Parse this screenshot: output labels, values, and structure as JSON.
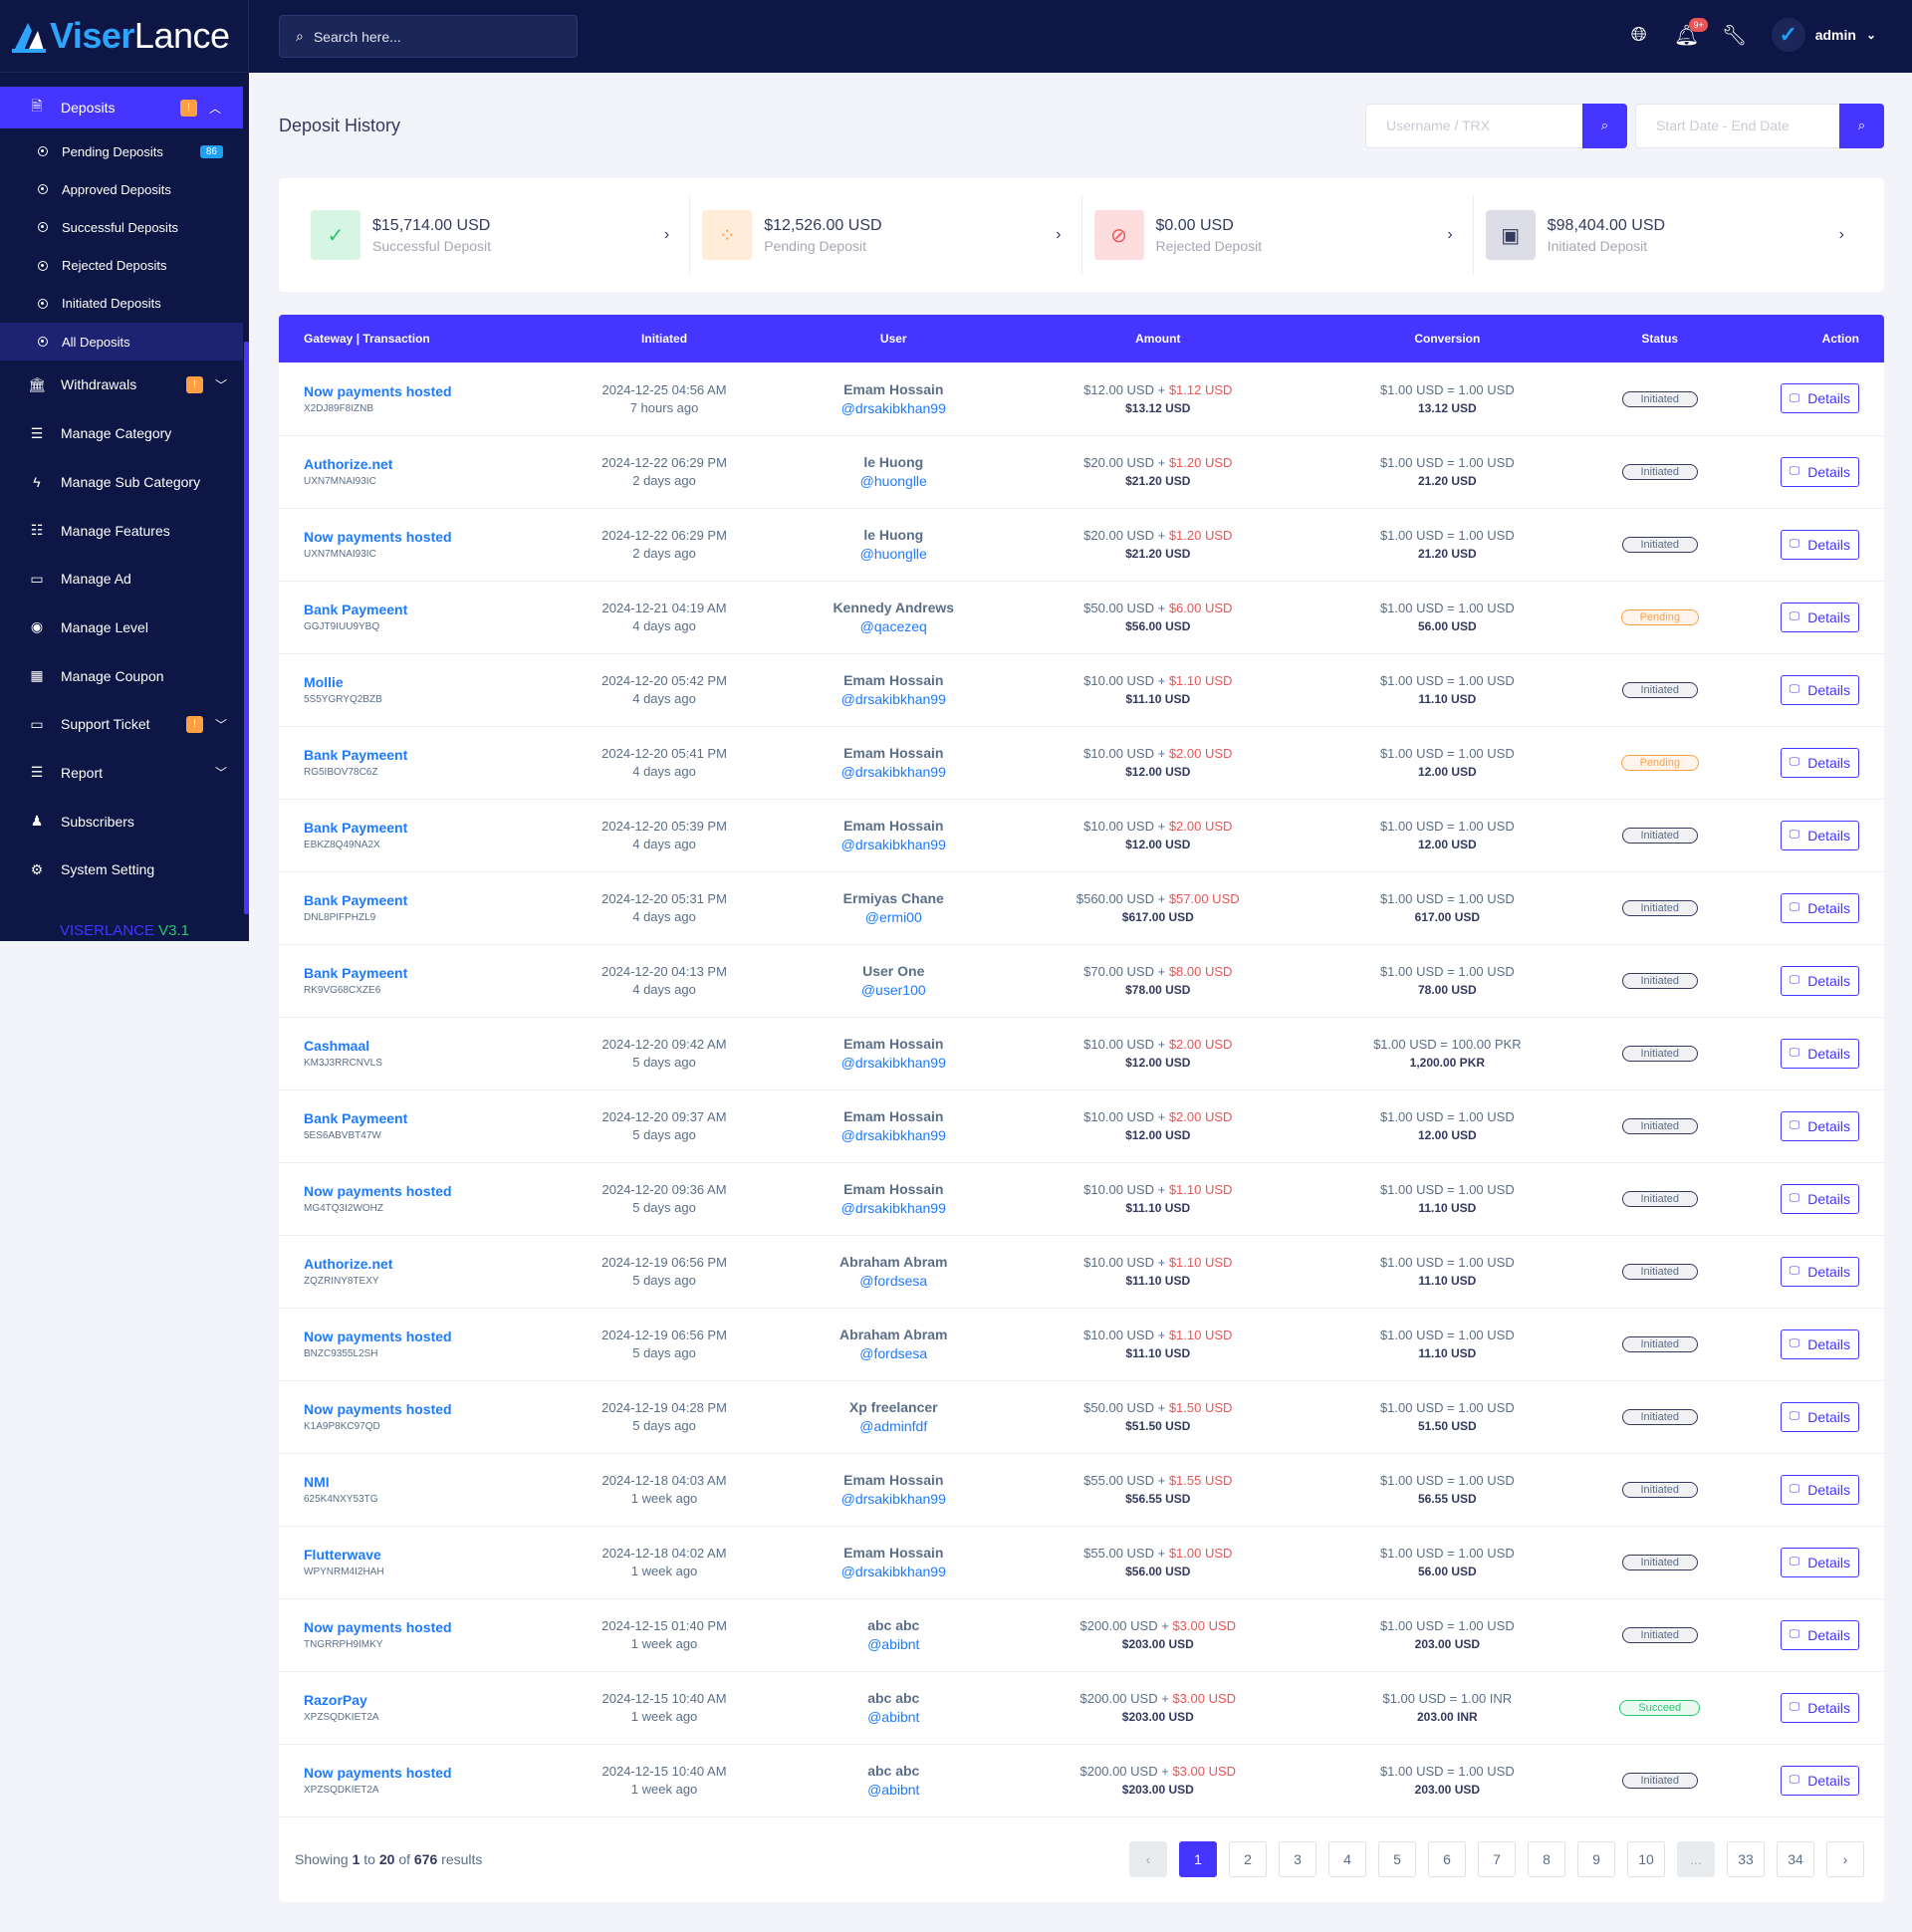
{
  "brand": {
    "name_a": "Viser",
    "name_b": "Lance"
  },
  "search": {
    "placeholder": "Search here..."
  },
  "topbar": {
    "admin_label": "admin",
    "notif_badge": "9+"
  },
  "sidebar": {
    "deposits": {
      "label": "Deposits",
      "warn": "!"
    },
    "sub_items": [
      {
        "label": "Pending Deposits",
        "count": "86"
      },
      {
        "label": "Approved Deposits"
      },
      {
        "label": "Successful Deposits"
      },
      {
        "label": "Rejected Deposits"
      },
      {
        "label": "Initiated Deposits"
      },
      {
        "label": "All Deposits"
      }
    ],
    "items": [
      {
        "label": "Withdrawals",
        "warn": "!"
      },
      {
        "label": "Manage Category"
      },
      {
        "label": "Manage Sub Category"
      },
      {
        "label": "Manage Features"
      },
      {
        "label": "Manage Ad"
      },
      {
        "label": "Manage Level"
      },
      {
        "label": "Manage Coupon"
      },
      {
        "label": "Support Ticket",
        "warn": "!"
      },
      {
        "label": "Report"
      },
      {
        "label": "Subscribers"
      },
      {
        "label": "System Setting"
      }
    ],
    "version_a": "VISERLANCE",
    "version_b": "V3.1"
  },
  "page": {
    "title": "Deposit History",
    "filter_user_placeholder": "Username / TRX",
    "filter_date_placeholder": "Start Date - End Date"
  },
  "stats": [
    {
      "value": "$15,714.00 USD",
      "label": "Successful Deposit"
    },
    {
      "value": "$12,526.00 USD",
      "label": "Pending Deposit"
    },
    {
      "value": "$0.00 USD",
      "label": "Rejected Deposit"
    },
    {
      "value": "$98,404.00 USD",
      "label": "Initiated Deposit"
    }
  ],
  "table": {
    "headers": [
      "Gateway | Transaction",
      "Initiated",
      "User",
      "Amount",
      "Conversion",
      "Status",
      "Action"
    ],
    "details_label": "Details",
    "rows": [
      {
        "gw": "Now payments hosted",
        "trx": "X2DJ89F8IZNB",
        "date": "2024-12-25 04:56 AM",
        "ago": "7 hours ago",
        "name": "Emam Hossain",
        "user": "@drsakibkhan99",
        "amt": "$12.00 USD +",
        "charge": "$1.12 USD",
        "total": "$13.12 USD",
        "rate": "$1.00 USD = 1.00 USD",
        "conv": "13.12 USD",
        "status": "Initiated",
        "sclass": "initiated"
      },
      {
        "gw": "Authorize.net",
        "trx": "UXN7MNAI93IC",
        "date": "2024-12-22 06:29 PM",
        "ago": "2 days ago",
        "name": "le Huong",
        "user": "@huonglle",
        "amt": "$20.00 USD +",
        "charge": "$1.20 USD",
        "total": "$21.20 USD",
        "rate": "$1.00 USD = 1.00 USD",
        "conv": "21.20 USD",
        "status": "Initiated",
        "sclass": "initiated"
      },
      {
        "gw": "Now payments hosted",
        "trx": "UXN7MNAI93IC",
        "date": "2024-12-22 06:29 PM",
        "ago": "2 days ago",
        "name": "le Huong",
        "user": "@huonglle",
        "amt": "$20.00 USD +",
        "charge": "$1.20 USD",
        "total": "$21.20 USD",
        "rate": "$1.00 USD = 1.00 USD",
        "conv": "21.20 USD",
        "status": "Initiated",
        "sclass": "initiated"
      },
      {
        "gw": "Bank Paymeent",
        "trx": "GGJT9IUU9YBQ",
        "date": "2024-12-21 04:19 AM",
        "ago": "4 days ago",
        "name": "Kennedy Andrews",
        "user": "@qacezeq",
        "amt": "$50.00 USD +",
        "charge": "$6.00 USD",
        "total": "$56.00 USD",
        "rate": "$1.00 USD = 1.00 USD",
        "conv": "56.00 USD",
        "status": "Pending",
        "sclass": "pending"
      },
      {
        "gw": "Mollie",
        "trx": "5S5YGRYQ2BZB",
        "date": "2024-12-20 05:42 PM",
        "ago": "4 days ago",
        "name": "Emam Hossain",
        "user": "@drsakibkhan99",
        "amt": "$10.00 USD +",
        "charge": "$1.10 USD",
        "total": "$11.10 USD",
        "rate": "$1.00 USD = 1.00 USD",
        "conv": "11.10 USD",
        "status": "Initiated",
        "sclass": "initiated"
      },
      {
        "gw": "Bank Paymeent",
        "trx": "RG5IBOV78C6Z",
        "date": "2024-12-20 05:41 PM",
        "ago": "4 days ago",
        "name": "Emam Hossain",
        "user": "@drsakibkhan99",
        "amt": "$10.00 USD +",
        "charge": "$2.00 USD",
        "total": "$12.00 USD",
        "rate": "$1.00 USD = 1.00 USD",
        "conv": "12.00 USD",
        "status": "Pending",
        "sclass": "pending"
      },
      {
        "gw": "Bank Paymeent",
        "trx": "EBKZ8Q49NA2X",
        "date": "2024-12-20 05:39 PM",
        "ago": "4 days ago",
        "name": "Emam Hossain",
        "user": "@drsakibkhan99",
        "amt": "$10.00 USD +",
        "charge": "$2.00 USD",
        "total": "$12.00 USD",
        "rate": "$1.00 USD = 1.00 USD",
        "conv": "12.00 USD",
        "status": "Initiated",
        "sclass": "initiated"
      },
      {
        "gw": "Bank Paymeent",
        "trx": "DNL8PIFPHZL9",
        "date": "2024-12-20 05:31 PM",
        "ago": "4 days ago",
        "name": "Ermiyas Chane",
        "user": "@ermi00",
        "amt": "$560.00 USD +",
        "charge": "$57.00 USD",
        "total": "$617.00 USD",
        "rate": "$1.00 USD = 1.00 USD",
        "conv": "617.00 USD",
        "status": "Initiated",
        "sclass": "initiated"
      },
      {
        "gw": "Bank Paymeent",
        "trx": "RK9VG68CXZE6",
        "date": "2024-12-20 04:13 PM",
        "ago": "4 days ago",
        "name": "User One",
        "user": "@user100",
        "amt": "$70.00 USD +",
        "charge": "$8.00 USD",
        "total": "$78.00 USD",
        "rate": "$1.00 USD = 1.00 USD",
        "conv": "78.00 USD",
        "status": "Initiated",
        "sclass": "initiated"
      },
      {
        "gw": "Cashmaal",
        "trx": "KM3J3RRCNVLS",
        "date": "2024-12-20 09:42 AM",
        "ago": "5 days ago",
        "name": "Emam Hossain",
        "user": "@drsakibkhan99",
        "amt": "$10.00 USD +",
        "charge": "$2.00 USD",
        "total": "$12.00 USD",
        "rate": "$1.00 USD = 100.00 PKR",
        "conv": "1,200.00 PKR",
        "status": "Initiated",
        "sclass": "initiated"
      },
      {
        "gw": "Bank Paymeent",
        "trx": "5ES6ABVBT47W",
        "date": "2024-12-20 09:37 AM",
        "ago": "5 days ago",
        "name": "Emam Hossain",
        "user": "@drsakibkhan99",
        "amt": "$10.00 USD +",
        "charge": "$2.00 USD",
        "total": "$12.00 USD",
        "rate": "$1.00 USD = 1.00 USD",
        "conv": "12.00 USD",
        "status": "Initiated",
        "sclass": "initiated"
      },
      {
        "gw": "Now payments hosted",
        "trx": "MG4TQ3I2WOHZ",
        "date": "2024-12-20 09:36 AM",
        "ago": "5 days ago",
        "name": "Emam Hossain",
        "user": "@drsakibkhan99",
        "amt": "$10.00 USD +",
        "charge": "$1.10 USD",
        "total": "$11.10 USD",
        "rate": "$1.00 USD = 1.00 USD",
        "conv": "11.10 USD",
        "status": "Initiated",
        "sclass": "initiated"
      },
      {
        "gw": "Authorize.net",
        "trx": "ZQZRINY8TEXY",
        "date": "2024-12-19 06:56 PM",
        "ago": "5 days ago",
        "name": "Abraham Abram",
        "user": "@fordsesa",
        "amt": "$10.00 USD +",
        "charge": "$1.10 USD",
        "total": "$11.10 USD",
        "rate": "$1.00 USD = 1.00 USD",
        "conv": "11.10 USD",
        "status": "Initiated",
        "sclass": "initiated"
      },
      {
        "gw": "Now payments hosted",
        "trx": "BNZC9355L2SH",
        "date": "2024-12-19 06:56 PM",
        "ago": "5 days ago",
        "name": "Abraham Abram",
        "user": "@fordsesa",
        "amt": "$10.00 USD +",
        "charge": "$1.10 USD",
        "total": "$11.10 USD",
        "rate": "$1.00 USD = 1.00 USD",
        "conv": "11.10 USD",
        "status": "Initiated",
        "sclass": "initiated"
      },
      {
        "gw": "Now payments hosted",
        "trx": "K1A9P8KC97QD",
        "date": "2024-12-19 04:28 PM",
        "ago": "5 days ago",
        "name": "Xp freelancer",
        "user": "@adminfdf",
        "amt": "$50.00 USD +",
        "charge": "$1.50 USD",
        "total": "$51.50 USD",
        "rate": "$1.00 USD = 1.00 USD",
        "conv": "51.50 USD",
        "status": "Initiated",
        "sclass": "initiated"
      },
      {
        "gw": "NMI",
        "trx": "625K4NXY53TG",
        "date": "2024-12-18 04:03 AM",
        "ago": "1 week ago",
        "name": "Emam Hossain",
        "user": "@drsakibkhan99",
        "amt": "$55.00 USD +",
        "charge": "$1.55 USD",
        "total": "$56.55 USD",
        "rate": "$1.00 USD = 1.00 USD",
        "conv": "56.55 USD",
        "status": "Initiated",
        "sclass": "initiated"
      },
      {
        "gw": "Flutterwave",
        "trx": "WPYNRM4I2HAH",
        "date": "2024-12-18 04:02 AM",
        "ago": "1 week ago",
        "name": "Emam Hossain",
        "user": "@drsakibkhan99",
        "amt": "$55.00 USD +",
        "charge": "$1.00 USD",
        "total": "$56.00 USD",
        "rate": "$1.00 USD = 1.00 USD",
        "conv": "56.00 USD",
        "status": "Initiated",
        "sclass": "initiated"
      },
      {
        "gw": "Now payments hosted",
        "trx": "TNGRRPH9IMKY",
        "date": "2024-12-15 01:40 PM",
        "ago": "1 week ago",
        "name": "abc abc",
        "user": "@abibnt",
        "amt": "$200.00 USD +",
        "charge": "$3.00 USD",
        "total": "$203.00 USD",
        "rate": "$1.00 USD = 1.00 USD",
        "conv": "203.00 USD",
        "status": "Initiated",
        "sclass": "initiated"
      },
      {
        "gw": "RazorPay",
        "trx": "XPZSQDKIET2A",
        "date": "2024-12-15 10:40 AM",
        "ago": "1 week ago",
        "name": "abc abc",
        "user": "@abibnt",
        "amt": "$200.00 USD +",
        "charge": "$3.00 USD",
        "total": "$203.00 USD",
        "rate": "$1.00 USD = 1.00 INR",
        "conv": "203.00 INR",
        "status": "Succeed",
        "sclass": "succeed"
      },
      {
        "gw": "Now payments hosted",
        "trx": "XPZSQDKIET2A",
        "date": "2024-12-15 10:40 AM",
        "ago": "1 week ago",
        "name": "abc abc",
        "user": "@abibnt",
        "amt": "$200.00 USD +",
        "charge": "$3.00 USD",
        "total": "$203.00 USD",
        "rate": "$1.00 USD = 1.00 USD",
        "conv": "203.00 USD",
        "status": "Initiated",
        "sclass": "initiated"
      }
    ]
  },
  "pagination": {
    "showing_prefix": "Showing",
    "from": "1",
    "to_word": "to",
    "to": "20",
    "of_word": "of",
    "total": "676",
    "results_word": "results",
    "prev": "‹",
    "next": "›",
    "pages": [
      "1",
      "2",
      "3",
      "4",
      "5",
      "6",
      "7",
      "8",
      "9",
      "10",
      "...",
      "33",
      "34"
    ],
    "active": "1"
  }
}
